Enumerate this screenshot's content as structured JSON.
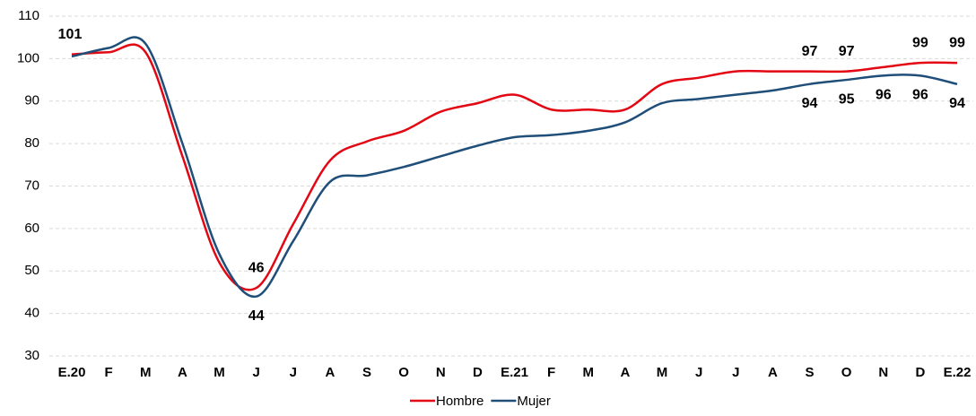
{
  "chart_data": {
    "type": "line",
    "categories": [
      "E.20",
      "F",
      "M",
      "A",
      "M",
      "J",
      "J",
      "A",
      "S",
      "O",
      "N",
      "D",
      "E.21",
      "F",
      "M",
      "A",
      "M",
      "J",
      "J",
      "A",
      "S",
      "O",
      "N",
      "D",
      "E.22"
    ],
    "series": [
      {
        "name": "Hombre",
        "color": "#e30613",
        "values": [
          101,
          101.5,
          101.5,
          77,
          52,
          46,
          61,
          76,
          80.5,
          83,
          87.5,
          89.5,
          91.5,
          88,
          88,
          88,
          94,
          95.5,
          97,
          97,
          97,
          97,
          98,
          99,
          99
        ],
        "value_labels": [
          "101",
          null,
          null,
          null,
          null,
          "46",
          null,
          null,
          null,
          null,
          null,
          null,
          null,
          null,
          null,
          null,
          null,
          null,
          null,
          null,
          "97",
          "97",
          null,
          "99",
          "99"
        ]
      },
      {
        "name": "Mujer",
        "color": "#1f4e79",
        "values": [
          100.5,
          102.5,
          103.5,
          80,
          54,
          44,
          57,
          71,
          72.5,
          74.5,
          77,
          79.5,
          81.5,
          82,
          83,
          85,
          89.5,
          90.5,
          91.5,
          92.5,
          94,
          95,
          96,
          96,
          94
        ],
        "value_labels": [
          null,
          null,
          null,
          null,
          null,
          "44",
          null,
          null,
          null,
          null,
          null,
          null,
          null,
          null,
          null,
          null,
          null,
          null,
          null,
          null,
          "94",
          "95",
          "96",
          "96",
          "94"
        ]
      }
    ],
    "ylim": [
      30,
      110
    ],
    "yticks": [
      30,
      40,
      50,
      60,
      70,
      80,
      90,
      100,
      110
    ],
    "grid": true,
    "legend": "bottom"
  }
}
